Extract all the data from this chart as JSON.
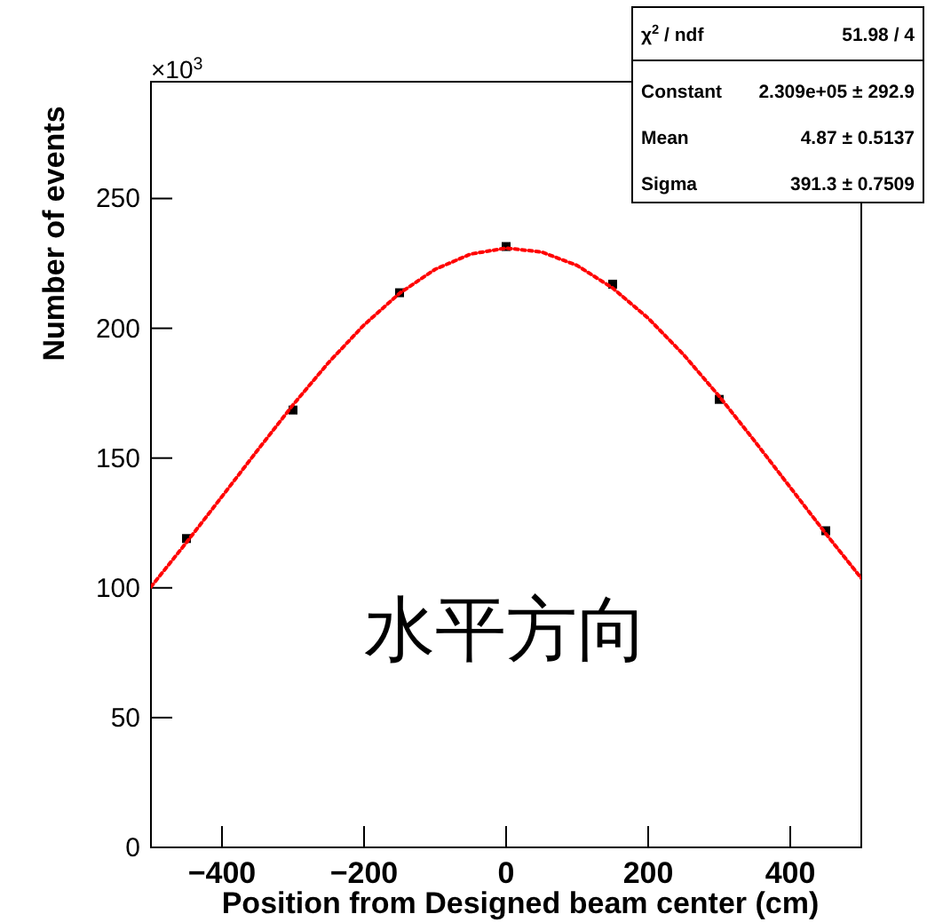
{
  "chart_data": {
    "type": "scatter",
    "xlabel": "Position from Designed beam center (cm)",
    "ylabel": "Number of events",
    "xlim": [
      -500,
      500
    ],
    "xticks": [
      -400,
      -200,
      0,
      200,
      400
    ],
    "ylim": [
      0,
      295
    ],
    "yticks": [
      0,
      50,
      100,
      150,
      200,
      250
    ],
    "grid": false,
    "series": [
      {
        "color": "#000000",
        "marker": "square",
        "x": [
          -450,
          -300,
          -150,
          0,
          150,
          300,
          450
        ],
        "values": [
          119,
          168.5,
          213.7,
          231.5,
          217,
          172.6,
          122
        ]
      },
      {
        "type": "line",
        "color": "#ff0000",
        "line_style": "dotted",
        "marker": "none",
        "x": [
          -500,
          -450,
          -400,
          -350,
          -300,
          -250,
          -200,
          -150,
          -100,
          -50,
          0,
          50,
          100,
          150,
          200,
          250,
          300,
          350,
          400,
          450,
          500
        ],
        "values": [
          100.4,
          117.5,
          135.2,
          153.0,
          170.5,
          186.8,
          201.3,
          213.5,
          222.7,
          228.6,
          230.9,
          229.4,
          224.2,
          215.5,
          203.9,
          189.8,
          173.8,
          156.5,
          138.7,
          120.9,
          103.7
        ]
      }
    ],
    "annotations": [
      "×10$^{3}$",
      "水平方向",
      "χ$^{2}$ / ndf",
      "51.98 / 4",
      "Constant",
      "2.309e+05 ± 292.9",
      "Mean",
      "4.87 ± 0.5137",
      "Sigma",
      "391.3 ± 0.7509"
    ]
  }
}
